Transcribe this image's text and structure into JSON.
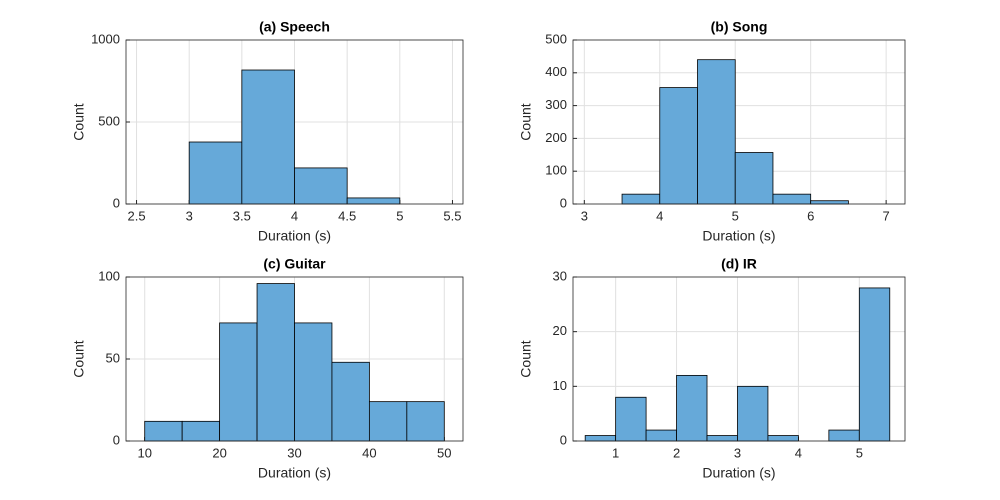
{
  "chart_data": [
    {
      "type": "histogram",
      "title": "(a) Speech",
      "xlabel": "Duration (s)",
      "ylabel": "Count",
      "bins": [
        3,
        3.5,
        4,
        4.5,
        5
      ],
      "counts": [
        378,
        817,
        220,
        37
      ],
      "xlim": [
        2.4,
        5.6
      ],
      "ylim": [
        0,
        1000
      ],
      "xticks": [
        2.5,
        3,
        3.5,
        4,
        4.5,
        5,
        5.5
      ],
      "yticks": [
        0,
        500,
        1000
      ],
      "color": "#66a9d9",
      "grid": true
    },
    {
      "type": "histogram",
      "title": "(b) Song",
      "xlabel": "Duration (s)",
      "ylabel": "Count",
      "bins": [
        3.5,
        4,
        4.5,
        5,
        5.5,
        6,
        6.5
      ],
      "counts": [
        30,
        355,
        440,
        157,
        30,
        10
      ],
      "xlim": [
        2.85,
        7.25
      ],
      "ylim": [
        0,
        500
      ],
      "xticks": [
        3,
        4,
        5,
        6,
        7
      ],
      "yticks": [
        0,
        100,
        200,
        300,
        400,
        500
      ],
      "color": "#66a9d9",
      "grid": true
    },
    {
      "type": "histogram",
      "title": "(c) Guitar",
      "xlabel": "Duration (s)",
      "ylabel": "Count",
      "bins": [
        10,
        15,
        20,
        25,
        30,
        35,
        40,
        45,
        50
      ],
      "counts": [
        12,
        12,
        72,
        96,
        72,
        48,
        24,
        24
      ],
      "xlim": [
        7.5,
        52.5
      ],
      "ylim": [
        0,
        100
      ],
      "xticks": [
        10,
        20,
        30,
        40,
        50
      ],
      "yticks": [
        0,
        50,
        100
      ],
      "color": "#66a9d9",
      "grid": true
    },
    {
      "type": "histogram",
      "title": "(d) IR",
      "xlabel": "Duration (s)",
      "ylabel": "Count",
      "bins": [
        0.5,
        1,
        1.5,
        2,
        2.5,
        3,
        3.5,
        4,
        4.5,
        5,
        5.5
      ],
      "counts": [
        1,
        8,
        2,
        12,
        1,
        10,
        1,
        0,
        2,
        28
      ],
      "xlim": [
        0.3,
        5.75
      ],
      "ylim": [
        0,
        30
      ],
      "xticks": [
        1,
        2,
        3,
        4,
        5
      ],
      "yticks": [
        0,
        10,
        20,
        30
      ],
      "color": "#66a9d9",
      "grid": true
    }
  ]
}
